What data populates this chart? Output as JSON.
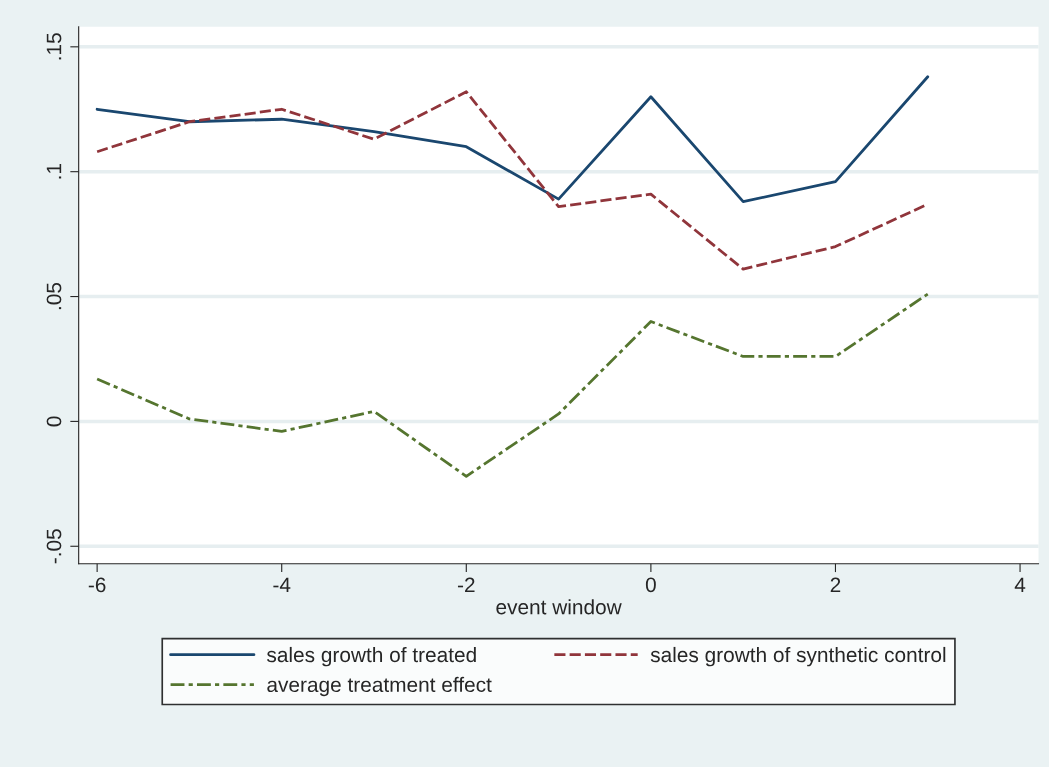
{
  "chart_data": {
    "type": "line",
    "xlabel": "event window",
    "x": [
      -6,
      -5,
      -4,
      -3,
      -2,
      -1,
      0,
      1,
      2,
      3
    ],
    "series": [
      {
        "name": "sales growth of treated",
        "color": "#1a476f",
        "line_style": "solid",
        "values": [
          0.125,
          0.12,
          0.121,
          0.116,
          0.11,
          0.089,
          0.13,
          0.088,
          0.096,
          0.138
        ]
      },
      {
        "name": "sales growth of synthetic control",
        "color": "#90353b",
        "line_style": "dashed",
        "values": [
          0.108,
          0.12,
          0.125,
          0.113,
          0.132,
          0.086,
          0.091,
          0.061,
          0.07,
          0.087
        ]
      },
      {
        "name": "average treatment effect",
        "color": "#55752f",
        "line_style": "dashdot",
        "values": [
          0.017,
          0.001,
          -0.004,
          0.004,
          -0.022,
          0.003,
          0.04,
          0.026,
          0.026,
          0.051
        ]
      }
    ],
    "xlim": [
      -6.2,
      4.2
    ],
    "xticks": [
      -6,
      -4,
      -2,
      0,
      2,
      4
    ],
    "ylim": [
      -0.057,
      0.158
    ],
    "yticks": [
      {
        "value": -0.05,
        "label": "-.05"
      },
      {
        "value": 0,
        "label": "0"
      },
      {
        "value": 0.05,
        "label": ".05"
      },
      {
        "value": 0.1,
        "label": ".1"
      },
      {
        "value": 0.15,
        "label": ".15"
      }
    ],
    "grid": "y",
    "legend": "bottom",
    "marker": "none"
  }
}
